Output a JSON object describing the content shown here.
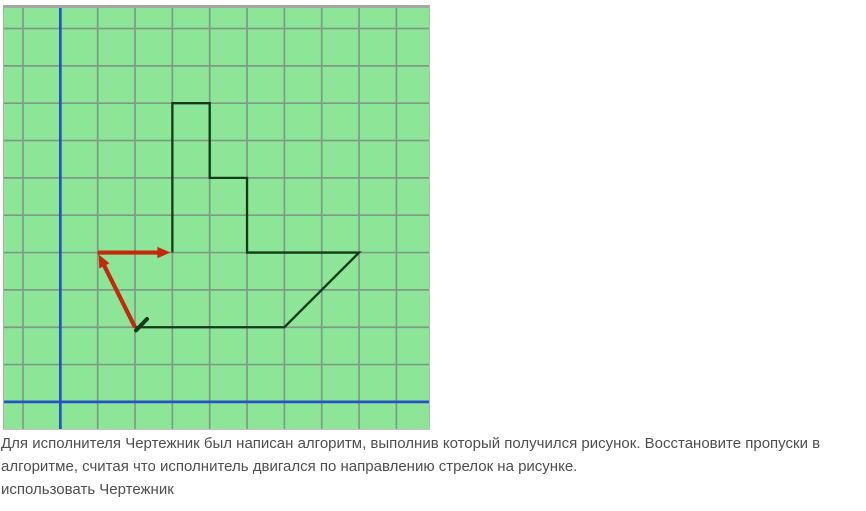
{
  "task_text": {
    "line1": "Для исполнителя Чертежник был написан алгоритм, выполнив который получился рисунок. Восстановите пропуски в",
    "line2": "алгоритме, считая что исполнитель двигался по направлению стрелок на рисунке.",
    "line3": "использовать Чертежник"
  },
  "drawing": {
    "colors": {
      "background": "#8de698",
      "grid_line": "#7d9c85",
      "axis_line": "#2453c4",
      "figure_line": "#113c17",
      "arrow": "#c5290c",
      "border": "#a2a9a2"
    },
    "grid": {
      "cols": 11,
      "rows": 11,
      "axis_col_index": 1,
      "axis_row_index": 10
    },
    "figure_polyline_units": [
      [
        3,
        4
      ],
      [
        3,
        8
      ],
      [
        4,
        8
      ],
      [
        4,
        6
      ],
      [
        5,
        6
      ],
      [
        5,
        4
      ],
      [
        8,
        4
      ],
      [
        6,
        2
      ],
      [
        2,
        2
      ]
    ],
    "arrows_units": [
      {
        "from": [
          2,
          2
        ],
        "to": [
          1,
          4
        ]
      },
      {
        "from": [
          1,
          4
        ],
        "to": [
          3,
          4
        ]
      }
    ],
    "start_tick_units": {
      "at": [
        2,
        2
      ],
      "direction": "up-right"
    }
  }
}
